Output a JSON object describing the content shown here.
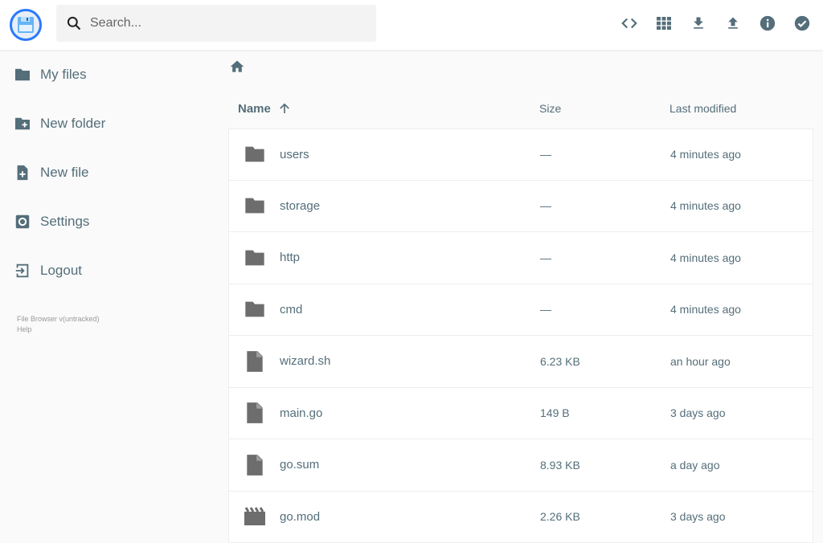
{
  "header": {
    "search_placeholder": "Search...",
    "actions": [
      "code-icon",
      "grid-view-icon",
      "download-icon",
      "upload-icon",
      "info-icon",
      "check-circle-icon"
    ]
  },
  "sidebar": {
    "items": [
      {
        "label": "My files",
        "icon": "folder-icon"
      },
      {
        "label": "New folder",
        "icon": "create-new-folder-icon"
      },
      {
        "label": "New file",
        "icon": "note-add-icon"
      },
      {
        "label": "Settings",
        "icon": "settings-icon"
      },
      {
        "label": "Logout",
        "icon": "exit-icon"
      }
    ],
    "version": "File Browser v(untracked)",
    "help": "Help"
  },
  "listing": {
    "columns": {
      "name": "Name",
      "size": "Size",
      "modified": "Last modified"
    },
    "rows": [
      {
        "name": "users",
        "size": "—",
        "modified": "4 minutes ago",
        "type": "folder"
      },
      {
        "name": "storage",
        "size": "—",
        "modified": "4 minutes ago",
        "type": "folder"
      },
      {
        "name": "http",
        "size": "—",
        "modified": "4 minutes ago",
        "type": "folder"
      },
      {
        "name": "cmd",
        "size": "—",
        "modified": "4 minutes ago",
        "type": "folder"
      },
      {
        "name": "wizard.sh",
        "size": "6.23 KB",
        "modified": "an hour ago",
        "type": "file"
      },
      {
        "name": "main.go",
        "size": "149 B",
        "modified": "3 days ago",
        "type": "file"
      },
      {
        "name": "go.sum",
        "size": "8.93 KB",
        "modified": "a day ago",
        "type": "file"
      },
      {
        "name": "go.mod",
        "size": "2.26 KB",
        "modified": "3 days ago",
        "type": "movie"
      }
    ]
  }
}
